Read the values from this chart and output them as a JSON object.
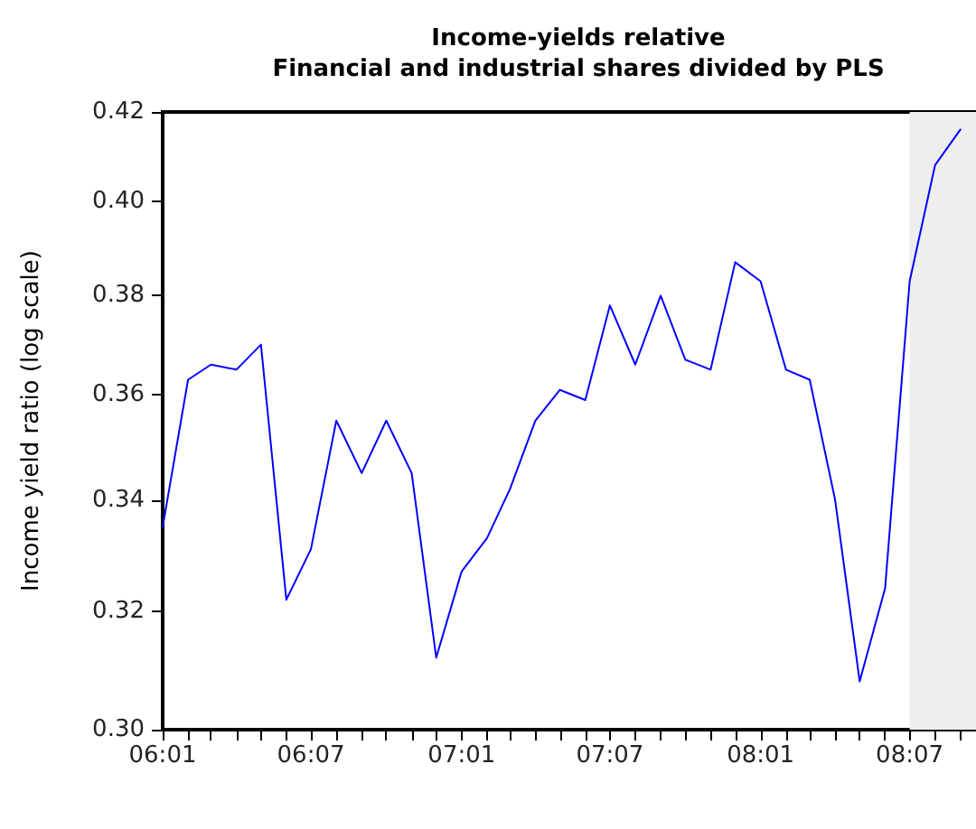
{
  "chart_data": {
    "type": "line",
    "title": "Income-yields relative",
    "subtitle": "Financial and industrial shares divided by PLS",
    "ylabel": "Income yield ratio (log scale)",
    "log": "y",
    "x": [
      "2006-01",
      "2006-02",
      "2006-03",
      "2006-04",
      "2006-05",
      "2006-06",
      "2006-07",
      "2006-08",
      "2006-09",
      "2006-10",
      "2006-11",
      "2006-12",
      "2007-01",
      "2007-02",
      "2007-03",
      "2007-04",
      "2007-05",
      "2007-06",
      "2007-07",
      "2007-08",
      "2007-09",
      "2007-10",
      "2007-11",
      "2007-12",
      "2008-01",
      "2008-02",
      "2008-03",
      "2008-04",
      "2008-05",
      "2008-06",
      "2008-07",
      "2008-08",
      "2008-09"
    ],
    "series": [
      {
        "color": "#0000ff",
        "values": [
          0.335,
          0.363,
          0.366,
          0.365,
          0.37,
          0.322,
          0.331,
          0.355,
          0.345,
          0.355,
          0.345,
          0.312,
          0.327,
          0.333,
          0.342,
          0.355,
          0.361,
          0.359,
          0.378,
          0.366,
          0.38,
          0.367,
          0.365,
          0.387,
          0.383,
          0.365,
          0.363,
          0.34,
          0.308,
          0.324,
          0.383,
          0.408,
          0.416
        ]
      }
    ],
    "xlim": [
      "2006-01",
      "2008-09-20"
    ],
    "xticks": [
      {
        "value": "2006-01",
        "label": "06:01"
      },
      {
        "value": "2006-02",
        "label": null
      },
      {
        "value": "2006-03",
        "label": null
      },
      {
        "value": "2006-04",
        "label": null
      },
      {
        "value": "2006-05",
        "label": null
      },
      {
        "value": "2006-06",
        "label": null
      },
      {
        "value": "2006-07",
        "label": "06:07"
      },
      {
        "value": "2006-08",
        "label": null
      },
      {
        "value": "2006-09",
        "label": null
      },
      {
        "value": "2006-10",
        "label": null
      },
      {
        "value": "2006-11",
        "label": null
      },
      {
        "value": "2006-12",
        "label": null
      },
      {
        "value": "2007-01",
        "label": "07:01"
      },
      {
        "value": "2007-02",
        "label": null
      },
      {
        "value": "2007-03",
        "label": null
      },
      {
        "value": "2007-04",
        "label": null
      },
      {
        "value": "2007-05",
        "label": null
      },
      {
        "value": "2007-06",
        "label": null
      },
      {
        "value": "2007-07",
        "label": "07:07"
      },
      {
        "value": "2007-08",
        "label": null
      },
      {
        "value": "2007-09",
        "label": null
      },
      {
        "value": "2007-10",
        "label": null
      },
      {
        "value": "2007-11",
        "label": null
      },
      {
        "value": "2007-12",
        "label": null
      },
      {
        "value": "2008-01",
        "label": "08:01"
      },
      {
        "value": "2008-02",
        "label": null
      },
      {
        "value": "2008-03",
        "label": null
      },
      {
        "value": "2008-04",
        "label": null
      },
      {
        "value": "2008-05",
        "label": null
      },
      {
        "value": "2008-06",
        "label": null
      },
      {
        "value": "2008-07",
        "label": "08:07"
      },
      {
        "value": "2008-08",
        "label": null
      },
      {
        "value": "2008-09",
        "label": null
      }
    ],
    "ylim": [
      0.3,
      0.42
    ],
    "yticks": [
      {
        "value": 0.3,
        "label": "0.30"
      },
      {
        "value": 0.32,
        "label": "0.32"
      },
      {
        "value": 0.34,
        "label": "0.34"
      },
      {
        "value": 0.36,
        "label": "0.36"
      },
      {
        "value": 0.38,
        "label": "0.38"
      },
      {
        "value": 0.4,
        "label": "0.40"
      },
      {
        "value": 0.42,
        "label": "0.42"
      }
    ],
    "bands": [
      {
        "axis": "x",
        "from": "2008-07",
        "to": "2008-09-20",
        "color": "#eeeeee"
      }
    ],
    "grid": false,
    "marker": "none",
    "line_style": "solid"
  }
}
